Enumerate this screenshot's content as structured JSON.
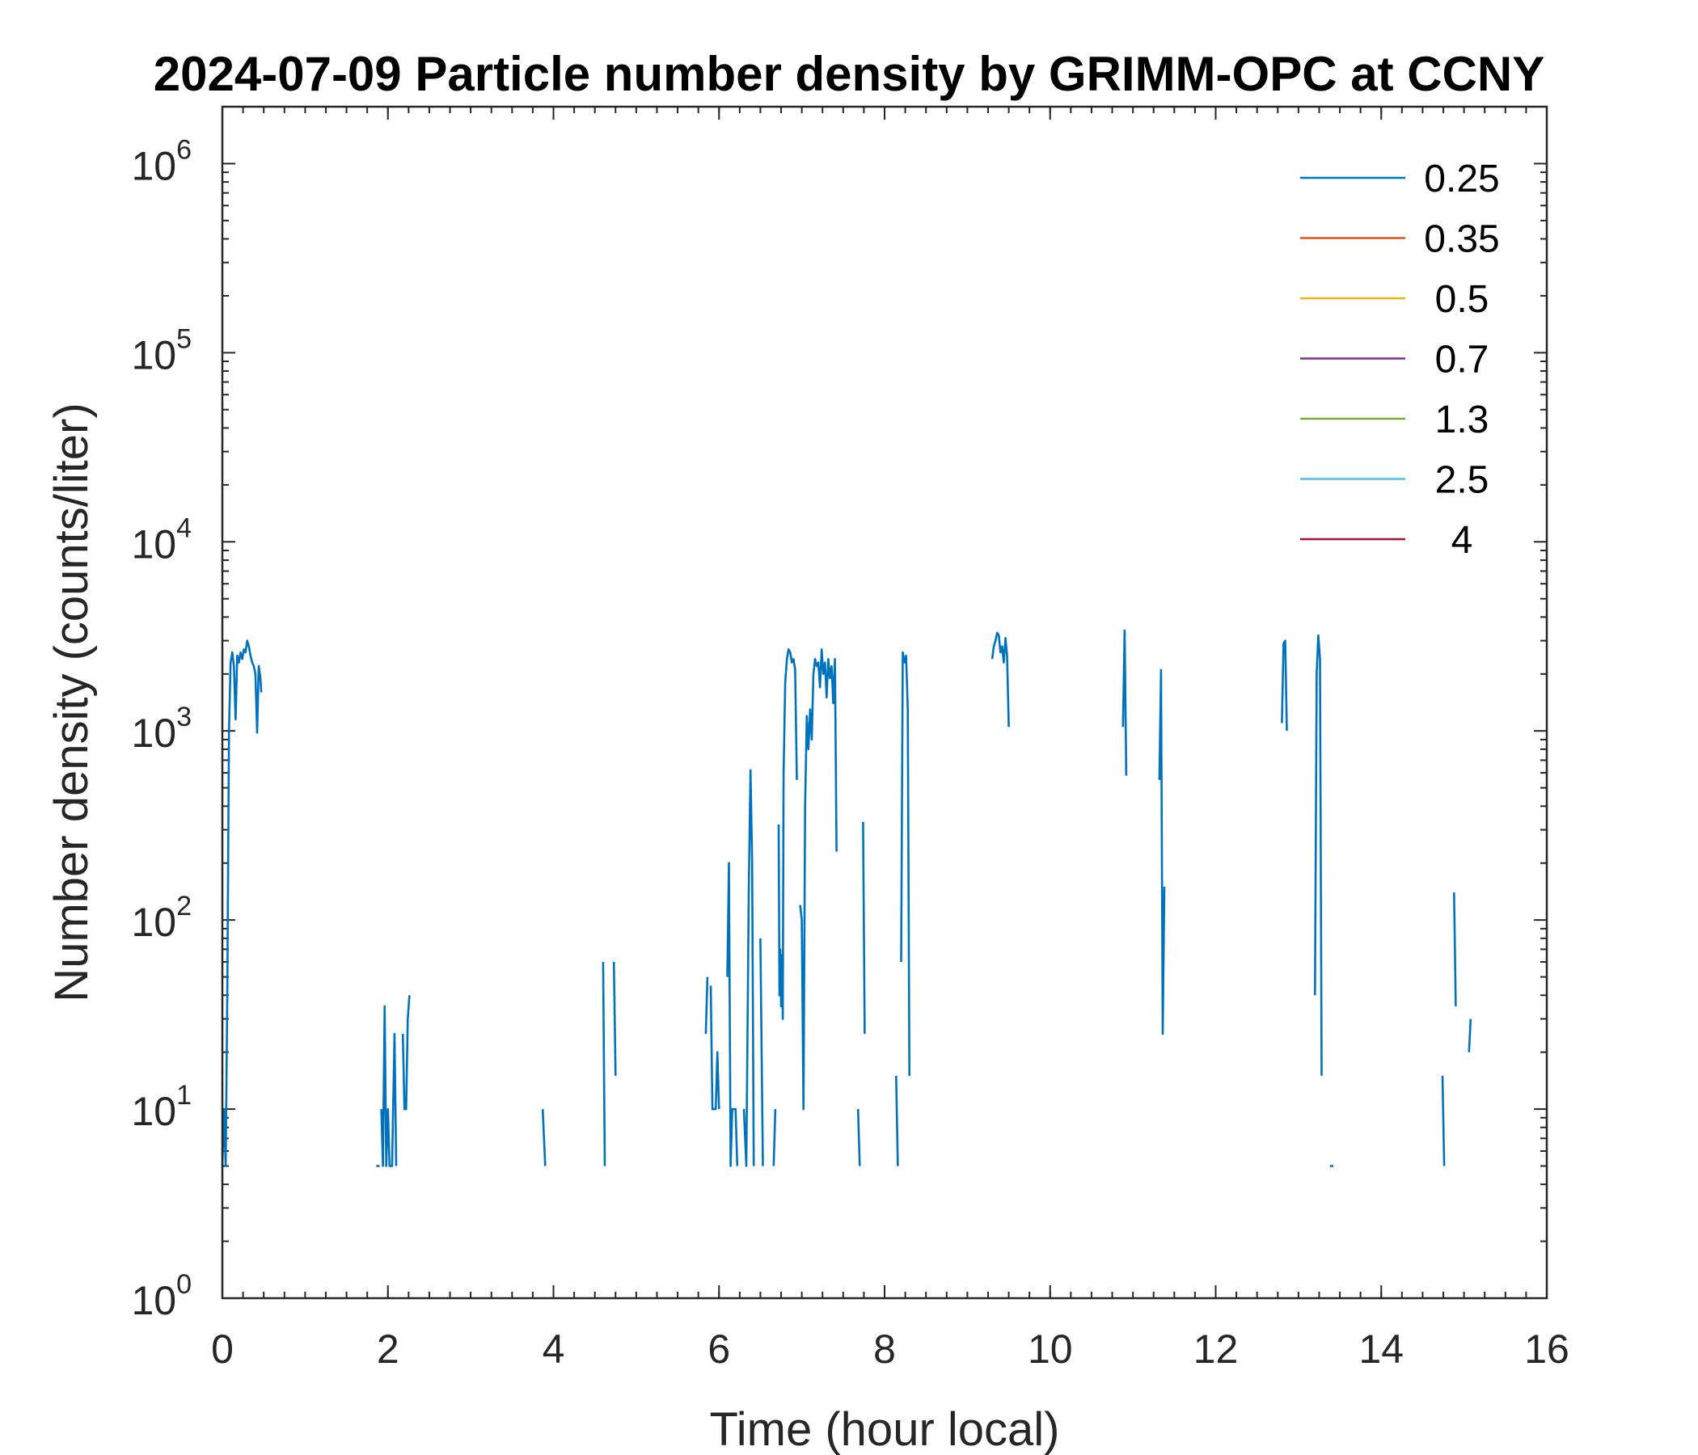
{
  "chart_data": {
    "type": "line",
    "title": "2024-07-09 Particle number density by GRIMM-OPC at CCNY",
    "xlabel": "Time (hour local)",
    "ylabel": "Number density (counts/liter)",
    "xlim": [
      0,
      16
    ],
    "ylim": [
      1,
      2000000
    ],
    "yscale": "log",
    "xticks": [
      0,
      2,
      4,
      6,
      8,
      10,
      12,
      14,
      16
    ],
    "yticks": [
      {
        "base": "10",
        "exp": "0",
        "value": 1
      },
      {
        "base": "10",
        "exp": "1",
        "value": 10
      },
      {
        "base": "10",
        "exp": "2",
        "value": 100
      },
      {
        "base": "10",
        "exp": "3",
        "value": 1000
      },
      {
        "base": "10",
        "exp": "4",
        "value": 10000
      },
      {
        "base": "10",
        "exp": "5",
        "value": 100000
      },
      {
        "base": "10",
        "exp": "6",
        "value": 1000000
      }
    ],
    "grid": false,
    "legend_position": "top-right",
    "series": [
      {
        "name": "0.25",
        "color": "#0072BD",
        "segments": [
          [
            [
              0.0,
              5
            ],
            [
              0.02,
              10
            ],
            [
              0.04,
              5
            ],
            [
              0.06,
              40
            ],
            [
              0.08,
              1000
            ],
            [
              0.1,
              2300
            ],
            [
              0.12,
              2600
            ],
            [
              0.14,
              2200
            ],
            [
              0.16,
              1150
            ],
            [
              0.18,
              2500
            ],
            [
              0.2,
              2300
            ],
            [
              0.22,
              2600
            ],
            [
              0.24,
              2400
            ],
            [
              0.26,
              2700
            ],
            [
              0.28,
              2600
            ],
            [
              0.3,
              3000
            ],
            [
              0.32,
              2800
            ],
            [
              0.34,
              2500
            ],
            [
              0.36,
              2300
            ],
            [
              0.38,
              2200
            ],
            [
              0.4,
              2000
            ],
            [
              0.42,
              980
            ],
            [
              0.44,
              2200
            ],
            [
              0.46,
              1900
            ],
            [
              0.47,
              1600
            ]
          ],
          [
            [
              1.86,
              5
            ],
            [
              1.9,
              5
            ]
          ],
          [
            [
              1.92,
              10
            ],
            [
              1.94,
              5
            ],
            [
              1.96,
              35
            ],
            [
              1.98,
              5
            ],
            [
              2.0,
              10
            ],
            [
              2.02,
              5
            ],
            [
              2.05,
              5
            ],
            [
              2.08,
              25
            ],
            [
              2.1,
              5
            ]
          ],
          [
            [
              2.18,
              25
            ],
            [
              2.2,
              10
            ],
            [
              2.22,
              10
            ],
            [
              2.24,
              30
            ],
            [
              2.26,
              40
            ]
          ],
          [
            [
              3.87,
              10
            ],
            [
              3.9,
              5
            ]
          ],
          [
            [
              4.6,
              60
            ],
            [
              4.62,
              5
            ]
          ],
          [
            [
              4.73,
              60
            ],
            [
              4.75,
              15
            ]
          ],
          [
            [
              5.84,
              25
            ],
            [
              5.86,
              50
            ]
          ],
          [
            [
              5.9,
              45
            ],
            [
              5.92,
              10
            ],
            [
              5.94,
              10
            ],
            [
              5.96,
              10
            ],
            [
              5.98,
              20
            ],
            [
              6.0,
              10
            ]
          ],
          [
            [
              6.1,
              50
            ],
            [
              6.12,
              200
            ],
            [
              6.14,
              5
            ],
            [
              6.16,
              10
            ],
            [
              6.18,
              10
            ],
            [
              6.2,
              10
            ],
            [
              6.22,
              5
            ]
          ],
          [
            [
              6.3,
              10
            ],
            [
              6.33,
              5
            ],
            [
              6.36,
              150
            ],
            [
              6.38,
              620
            ],
            [
              6.4,
              200
            ],
            [
              6.42,
              5
            ]
          ],
          [
            [
              6.5,
              80
            ],
            [
              6.53,
              5
            ]
          ],
          [
            [
              6.66,
              5
            ],
            [
              6.68,
              10
            ]
          ],
          [
            [
              6.72,
              320
            ],
            [
              6.73,
              40
            ],
            [
              6.74,
              70
            ],
            [
              6.75,
              35
            ],
            [
              6.76,
              65
            ],
            [
              6.77,
              30
            ],
            [
              6.78,
              600
            ],
            [
              6.8,
              1800
            ],
            [
              6.82,
              2400
            ],
            [
              6.84,
              2700
            ],
            [
              6.86,
              2600
            ],
            [
              6.88,
              2300
            ],
            [
              6.9,
              2400
            ],
            [
              6.92,
              2100
            ],
            [
              6.94,
              550
            ]
          ],
          [
            [
              6.98,
              120
            ],
            [
              7.0,
              100
            ],
            [
              7.02,
              10
            ],
            [
              7.04,
              400
            ],
            [
              7.06,
              1200
            ],
            [
              7.08,
              800
            ],
            [
              7.1,
              1300
            ],
            [
              7.12,
              900
            ],
            [
              7.14,
              2000
            ],
            [
              7.16,
              2400
            ],
            [
              7.18,
              2200
            ],
            [
              7.2,
              2300
            ],
            [
              7.22,
              1700
            ],
            [
              7.24,
              2700
            ],
            [
              7.26,
              2000
            ],
            [
              7.28,
              2300
            ],
            [
              7.3,
              1500
            ],
            [
              7.32,
              2400
            ],
            [
              7.34,
              1900
            ],
            [
              7.36,
              2200
            ],
            [
              7.38,
              1400
            ],
            [
              7.4,
              2400
            ],
            [
              7.42,
              230
            ]
          ],
          [
            [
              7.68,
              10
            ],
            [
              7.7,
              5
            ]
          ],
          [
            [
              7.74,
              330
            ],
            [
              7.76,
              25
            ]
          ],
          [
            [
              8.14,
              15
            ],
            [
              8.16,
              5
            ]
          ],
          [
            [
              8.2,
              60
            ],
            [
              8.22,
              2600
            ],
            [
              8.24,
              2300
            ],
            [
              8.26,
              2500
            ],
            [
              8.28,
              1300
            ],
            [
              8.3,
              15
            ]
          ],
          [
            [
              9.3,
              2400
            ],
            [
              9.32,
              2800
            ],
            [
              9.34,
              3000
            ],
            [
              9.36,
              3300
            ],
            [
              9.38,
              3200
            ],
            [
              9.4,
              2600
            ],
            [
              9.42,
              2800
            ],
            [
              9.44,
              2300
            ],
            [
              9.46,
              3100
            ],
            [
              9.48,
              2500
            ],
            [
              9.5,
              1050
            ]
          ],
          [
            [
              10.88,
              1050
            ],
            [
              10.9,
              3400
            ],
            [
              10.92,
              580
            ]
          ],
          [
            [
              11.32,
              550
            ],
            [
              11.34,
              2100
            ],
            [
              11.36,
              25
            ],
            [
              11.38,
              150
            ]
          ],
          [
            [
              12.8,
              1100
            ],
            [
              12.82,
              2900
            ],
            [
              12.84,
              3000
            ],
            [
              12.86,
              1000
            ]
          ],
          [
            [
              13.2,
              40
            ],
            [
              13.22,
              2000
            ],
            [
              13.24,
              3200
            ],
            [
              13.26,
              2400
            ],
            [
              13.28,
              15
            ]
          ],
          [
            [
              13.38,
              5
            ],
            [
              13.42,
              5
            ]
          ],
          [
            [
              14.74,
              15
            ],
            [
              14.76,
              5
            ]
          ],
          [
            [
              14.88,
              140
            ],
            [
              14.9,
              35
            ]
          ],
          [
            [
              15.06,
              20
            ],
            [
              15.08,
              30
            ]
          ]
        ]
      },
      {
        "name": "0.35",
        "color": "#D95319",
        "segments": []
      },
      {
        "name": "0.5",
        "color": "#EDB120",
        "segments": []
      },
      {
        "name": "0.7",
        "color": "#7E2F8E",
        "segments": []
      },
      {
        "name": "1.3",
        "color": "#77AC30",
        "segments": []
      },
      {
        "name": "2.5",
        "color": "#4DBEEE",
        "segments": []
      },
      {
        "name": "4",
        "color": "#A2142F",
        "segments": []
      }
    ]
  }
}
